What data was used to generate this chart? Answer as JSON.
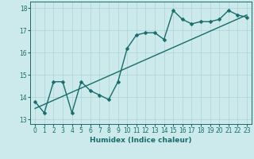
{
  "xlabel": "Humidex (Indice chaleur)",
  "ylabel": "",
  "bg_color": "#cceaeb",
  "line_color": "#1a6b6b",
  "grid_color": "#add4d5",
  "xlim": [
    -0.5,
    23.5
  ],
  "ylim": [
    12.8,
    18.3
  ],
  "xticks": [
    0,
    1,
    2,
    3,
    4,
    5,
    6,
    7,
    8,
    9,
    10,
    11,
    12,
    13,
    14,
    15,
    16,
    17,
    18,
    19,
    20,
    21,
    22,
    23
  ],
  "yticks": [
    13,
    14,
    15,
    16,
    17,
    18
  ],
  "data_x": [
    0,
    1,
    2,
    3,
    4,
    5,
    6,
    7,
    8,
    9,
    10,
    11,
    12,
    13,
    14,
    15,
    16,
    17,
    18,
    19,
    20,
    21,
    22,
    23
  ],
  "data_y": [
    13.8,
    13.3,
    14.7,
    14.7,
    13.3,
    14.7,
    14.3,
    14.1,
    13.9,
    14.7,
    16.2,
    16.8,
    16.9,
    16.9,
    16.6,
    17.9,
    17.5,
    17.3,
    17.4,
    17.4,
    17.5,
    17.9,
    17.7,
    17.6
  ],
  "trend_x": [
    0,
    23
  ],
  "trend_y": [
    13.5,
    17.7
  ],
  "marker_size": 2.5,
  "line_width": 1.0,
  "tick_fontsize": 5.5,
  "label_fontsize": 6.5
}
